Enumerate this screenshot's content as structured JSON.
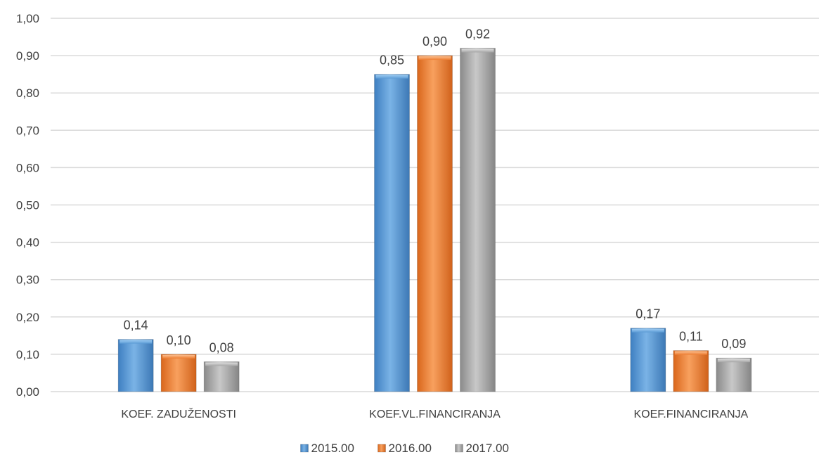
{
  "chart_data": {
    "type": "bar",
    "categories": [
      "KOEF. ZADUŽENOSTI",
      "KOEF.VL.FINANCIRANJA",
      "KOEF.FINANCIRANJA"
    ],
    "series": [
      {
        "name": "2015.00",
        "values": [
          0.14,
          0.85,
          0.17
        ],
        "labels": [
          "0,14",
          "0,85",
          "0,17"
        ],
        "color": "#5B9BD5"
      },
      {
        "name": "2016.00",
        "values": [
          0.1,
          0.9,
          0.11
        ],
        "labels": [
          "0,10",
          "0,90",
          "0,11"
        ],
        "color": "#ED7D31"
      },
      {
        "name": "2017.00",
        "values": [
          0.08,
          0.92,
          0.09
        ],
        "labels": [
          "0,08",
          "0,92",
          "0,09"
        ],
        "color": "#A5A5A5"
      }
    ],
    "ylim": [
      0,
      1.0
    ],
    "yticks": [
      0,
      0.1,
      0.2,
      0.3,
      0.4,
      0.5,
      0.6,
      0.7,
      0.8,
      0.9,
      1.0
    ],
    "ytick_labels": [
      "0,00",
      "0,10",
      "0,20",
      "0,30",
      "0,40",
      "0,50",
      "0,60",
      "0,70",
      "0,80",
      "0,90",
      "1,00"
    ],
    "grid": true,
    "legend_position": "bottom-center",
    "title": "",
    "xlabel": "",
    "ylabel": ""
  }
}
